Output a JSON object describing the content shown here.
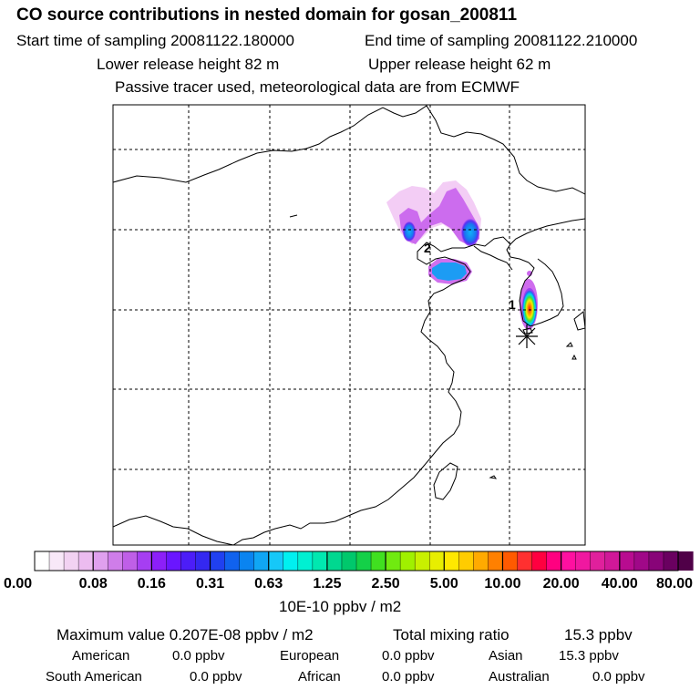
{
  "header": {
    "title": "CO  source contributions in nested domain for gosan_200811",
    "start_label": "Start time of sampling 20081122.180000",
    "end_label": "End time of sampling 20081122.210000",
    "lower_label": "Lower release height   82 m",
    "upper_label": "Upper release height   62 m",
    "note": "Passive tracer used, meteorological data are from ECMWF"
  },
  "map": {
    "receptors": [
      {
        "id": "1",
        "label": "1"
      },
      {
        "id": "2",
        "label": "2"
      }
    ]
  },
  "colorbar": {
    "labels": [
      "0.00",
      "0.08",
      "0.16",
      "0.31",
      "0.63",
      "1.25",
      "2.50",
      "5.00",
      "10.00",
      "20.00",
      "40.00",
      "80.00"
    ],
    "colors": [
      "#ffffff",
      "#f8e8f8",
      "#f2d2f2",
      "#ecbcf0",
      "#e0a0ee",
      "#cf7de9",
      "#bf5fe7",
      "#a63ef2",
      "#8c1ff8",
      "#6a16ff",
      "#4c1df8",
      "#3428f0",
      "#2040f0",
      "#1062ee",
      "#0a84f0",
      "#10a6f4",
      "#16c8f8",
      "#00f0f0",
      "#00f0d2",
      "#00e8b0",
      "#00d890",
      "#00c86c",
      "#14d048",
      "#40e020",
      "#70ea10",
      "#a0f000",
      "#c8f000",
      "#e8ee00",
      "#ffe800",
      "#ffcc00",
      "#ffaa00",
      "#ff8000",
      "#ff5a00",
      "#ff3030",
      "#ff0040",
      "#ff0080",
      "#ff10a0",
      "#f018a0",
      "#e0209c",
      "#d01898",
      "#b80c90",
      "#a00888",
      "#880478",
      "#6a0060",
      "#500048"
    ],
    "unit": "10E-10 ppbv / m2"
  },
  "stats": {
    "max_label": "Maximum value  0.207E-08 ppbv / m2",
    "total_label": "Total mixing ratio",
    "total_value": "15.3 ppbv",
    "regions": [
      {
        "name": "American",
        "value": "0.0 ppbv"
      },
      {
        "name": "European",
        "value": "0.0 ppbv"
      },
      {
        "name": "Asian",
        "value": "15.3 ppbv"
      },
      {
        "name": "South American",
        "value": "0.0 ppbv"
      },
      {
        "name": "African",
        "value": "0.0 ppbv"
      },
      {
        "name": "Australian",
        "value": "0.0 ppbv"
      }
    ]
  }
}
